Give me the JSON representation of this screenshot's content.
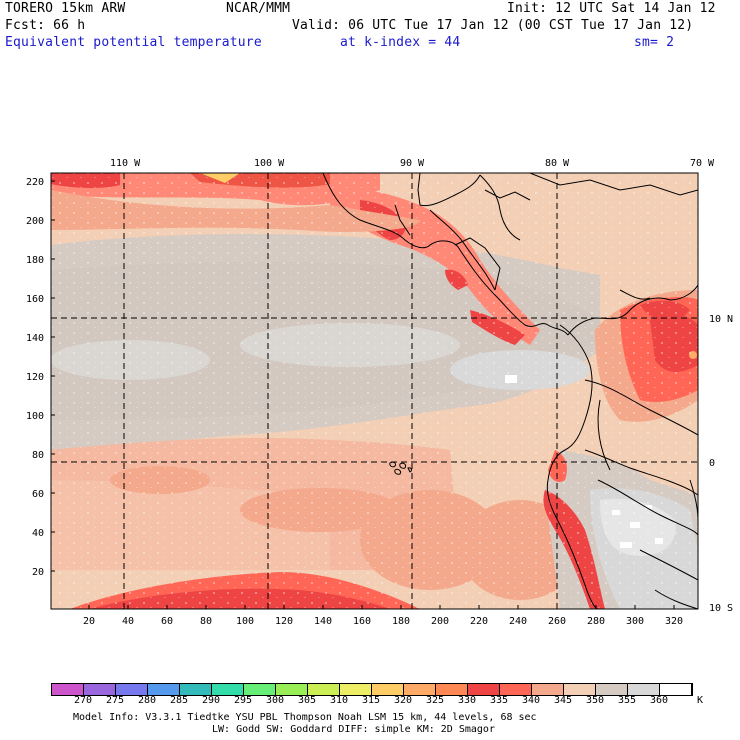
{
  "header": {
    "model": "TORERO  15km ARW",
    "org": "NCAR/MMM",
    "init": "Init: 12 UTC Sat 14 Jan 12",
    "fcst": "Fcst:   66 h",
    "valid": "Valid: 06 UTC Tue 17 Jan 12 (00 CST Tue 17 Jan 12)",
    "field": "Equivalent potential temperature",
    "level": "at k-index =  44",
    "smooth": "sm= 2"
  },
  "map": {
    "top_lon_labels": [
      "110 W",
      "100 W",
      "90 W",
      "80 W",
      "70 W"
    ],
    "right_lat_labels": [
      "10 N",
      "0",
      "10 S"
    ],
    "left_ticks": [
      "220",
      "200",
      "180",
      "160",
      "140",
      "120",
      "100",
      "80",
      "60",
      "40",
      "20"
    ],
    "bottom_ticks": [
      "20",
      "40",
      "60",
      "80",
      "100",
      "120",
      "140",
      "160",
      "180",
      "200",
      "220",
      "240",
      "260",
      "280",
      "300",
      "320"
    ]
  },
  "colorbar": {
    "unit": "K",
    "labels": [
      "270",
      "275",
      "280",
      "285",
      "290",
      "295",
      "300",
      "305",
      "310",
      "315",
      "320",
      "325",
      "330",
      "335",
      "340",
      "345",
      "350",
      "355",
      "360"
    ],
    "colors": [
      "#cc55cc",
      "#9966dd",
      "#7777ee",
      "#5599ee",
      "#33bbbb",
      "#33ddaa",
      "#66ee77",
      "#99ee55",
      "#ccee55",
      "#eeee66",
      "#ffcc66",
      "#ffaa66",
      "#ff8855",
      "#ee4444",
      "#ff6655",
      "#f4a98c",
      "#f3cfb6",
      "#d6cbc2",
      "#d8d8d8",
      "#ffffff"
    ]
  },
  "footer": {
    "line1": "Model Info: V3.3.1    Tiedtke YSU PBL  Thompson     Noah LSM  15 km,    44 levels,   68 sec",
    "line2": "LW: Godd SW: Goddard DIFF: simple KM: 2D Smagor"
  }
}
